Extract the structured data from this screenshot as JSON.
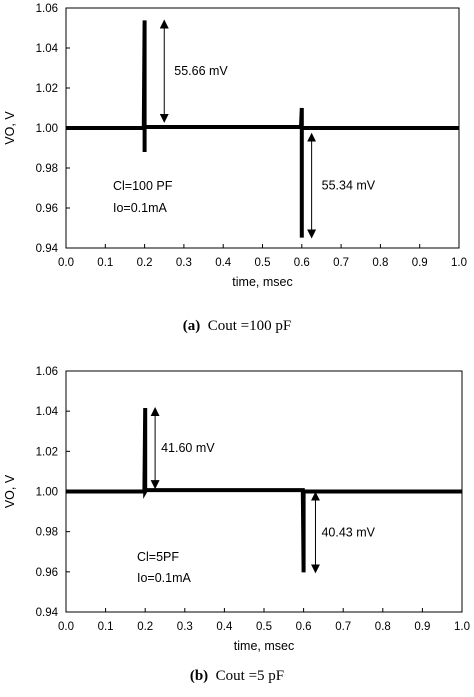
{
  "chart_data": [
    {
      "type": "line",
      "xlabel": "time, msec",
      "ylabel": "VO, V",
      "xlim": [
        0.0,
        1.0
      ],
      "ylim": [
        0.94,
        1.06
      ],
      "xticks": [
        "0.0",
        "0.1",
        "0.2",
        "0.3",
        "0.4",
        "0.5",
        "0.6",
        "0.7",
        "0.8",
        "0.9",
        "1.0"
      ],
      "yticks": [
        "0.94",
        "0.96",
        "0.98",
        "1.00",
        "1.02",
        "1.04",
        "1.06"
      ],
      "grid": false,
      "x": [
        0.0,
        0.198,
        0.2,
        0.2,
        0.2,
        0.202,
        0.598,
        0.6,
        0.6,
        0.6,
        0.602,
        1.0
      ],
      "y": [
        1.0,
        1.0,
        1.0538,
        0.988,
        1.0,
        1.0005,
        1.0005,
        1.01,
        0.9452,
        1.0,
        1.0,
        1.0
      ],
      "annotations": [
        {
          "text": "55.66 mV",
          "x": 0.25,
          "y_from": 1.0538,
          "y_to": 1.003
        },
        {
          "text": "55.34 mV",
          "x": 0.625,
          "y_from": 0.9972,
          "y_to": 0.9452
        }
      ],
      "notes": [
        "Cl=100 PF",
        "Io=0.1mA"
      ],
      "caption_label": "(a)",
      "caption_text": "Cout =100 pF"
    },
    {
      "type": "line",
      "xlabel": "time, msec",
      "ylabel": "VO, V",
      "xlim": [
        0.0,
        1.0
      ],
      "ylim": [
        0.94,
        1.06
      ],
      "xticks": [
        "0.0",
        "0.1",
        "0.2",
        "0.3",
        "0.4",
        "0.5",
        "0.6",
        "0.7",
        "0.8",
        "0.9",
        "1.0"
      ],
      "yticks": [
        "0.94",
        "0.96",
        "0.98",
        "1.00",
        "1.02",
        "1.04",
        "1.06"
      ],
      "grid": false,
      "x": [
        0.0,
        0.198,
        0.2,
        0.2,
        0.202,
        0.598,
        0.6,
        0.6,
        0.602,
        1.0
      ],
      "y": [
        1.0,
        1.0,
        1.0416,
        1.0,
        1.0007,
        1.0007,
        0.9597,
        1.0,
        1.0,
        1.0
      ],
      "annotations": [
        {
          "text": "41.60 mV",
          "x": 0.225,
          "y_from": 1.0416,
          "y_to": 1.0016
        },
        {
          "text": "40.43 mV",
          "x": 0.63,
          "y_from": 0.9995,
          "y_to": 0.9597
        }
      ],
      "notes": [
        "Cl=5PF",
        "Io=0.1mA"
      ],
      "caption_label": "(b)",
      "caption_text": "Cout =5 pF"
    }
  ]
}
